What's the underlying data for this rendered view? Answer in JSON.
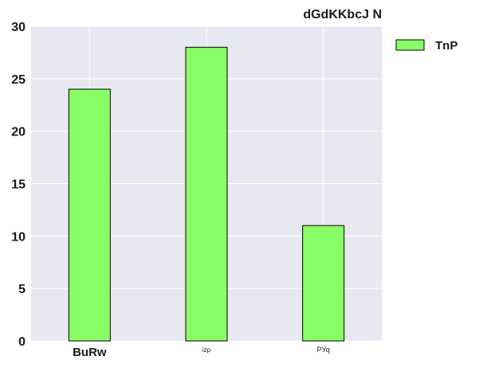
{
  "chart_data": {
    "type": "bar",
    "title": "dGdKKbcJ N",
    "xlabel": "",
    "ylabel": "",
    "categories": [
      "BuRw",
      "izp",
      "PYq"
    ],
    "series": [
      {
        "name": "TnP",
        "values": [
          24,
          28,
          11
        ]
      }
    ],
    "ylim": [
      0,
      30
    ],
    "yticks": [
      0,
      5,
      10,
      15,
      20,
      25,
      30
    ],
    "grid": true,
    "legend": "outside-top-right",
    "colors": {
      "bar_fill": "#88ff66",
      "bar_stroke": "#000000",
      "plot_background": "#e8e8f0",
      "grid": "#ffffff"
    }
  }
}
